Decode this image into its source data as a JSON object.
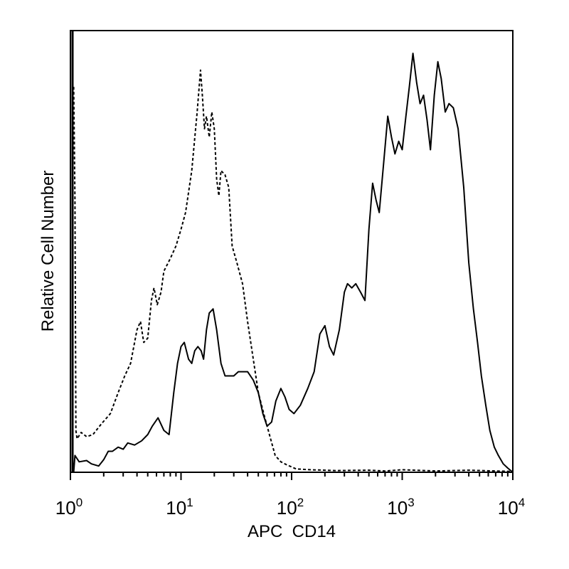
{
  "chart_data": {
    "type": "line",
    "title": "",
    "xlabel": "APC  CD14",
    "ylabel": "Relative Cell Number",
    "x_scale": "log",
    "xlim": [
      1,
      10000
    ],
    "ylim": [
      0,
      100
    ],
    "x_ticks": [
      {
        "value": 1,
        "base": "10",
        "exp": "0"
      },
      {
        "value": 10,
        "base": "10",
        "exp": "1"
      },
      {
        "value": 100,
        "base": "10",
        "exp": "2"
      },
      {
        "value": 1000,
        "base": "10",
        "exp": "3"
      },
      {
        "value": 10000,
        "base": "10",
        "exp": "4"
      }
    ],
    "grid": false,
    "legend": "none",
    "series": [
      {
        "style": "dashed",
        "color": "#000000",
        "points": [
          [
            1.07,
            92
          ],
          [
            1.1,
            65
          ],
          [
            1.12,
            10
          ],
          [
            1.15,
            8
          ],
          [
            1.25,
            9.5
          ],
          [
            1.4,
            8.5
          ],
          [
            1.6,
            9
          ],
          [
            1.9,
            11.5
          ],
          [
            2.3,
            14
          ],
          [
            2.7,
            19
          ],
          [
            3.1,
            23
          ],
          [
            3.5,
            26
          ],
          [
            4.0,
            34
          ],
          [
            4.3,
            36
          ],
          [
            4.6,
            31
          ],
          [
            5.0,
            32
          ],
          [
            5.4,
            41
          ],
          [
            5.7,
            44
          ],
          [
            6.1,
            40
          ],
          [
            6.6,
            43
          ],
          [
            7.0,
            48
          ],
          [
            8.0,
            51
          ],
          [
            9.0,
            54
          ],
          [
            10.0,
            58
          ],
          [
            11.0,
            62
          ],
          [
            12.5,
            72
          ],
          [
            14.0,
            86
          ],
          [
            15.0,
            96
          ],
          [
            15.6,
            90
          ],
          [
            16.3,
            82
          ],
          [
            17.0,
            85
          ],
          [
            18.0,
            80
          ],
          [
            19.0,
            86
          ],
          [
            20.0,
            82
          ],
          [
            21.0,
            70
          ],
          [
            22.0,
            66
          ],
          [
            23.0,
            72
          ],
          [
            25.0,
            71
          ],
          [
            27.0,
            68
          ],
          [
            29.0,
            54
          ],
          [
            32.0,
            50
          ],
          [
            36.0,
            45
          ],
          [
            40.0,
            36
          ],
          [
            45.0,
            27
          ],
          [
            50.0,
            19
          ],
          [
            56.0,
            14
          ],
          [
            63.0,
            9
          ],
          [
            71.0,
            4
          ],
          [
            80.0,
            2.5
          ],
          [
            90.0,
            1.8
          ],
          [
            110.0,
            0.8
          ],
          [
            150.0,
            0.6
          ],
          [
            250.0,
            0.4
          ],
          [
            500.0,
            0.5
          ],
          [
            700.0,
            0.3
          ],
          [
            1000.0,
            0.6
          ],
          [
            2000.0,
            0.3
          ],
          [
            4000.0,
            0.5
          ],
          [
            7000.0,
            0.3
          ],
          [
            10000.0,
            0.2
          ]
        ]
      },
      {
        "style": "solid",
        "color": "#000000",
        "points": [
          [
            1.07,
            0
          ],
          [
            1.1,
            4
          ],
          [
            1.2,
            2.5
          ],
          [
            1.4,
            2.8
          ],
          [
            1.55,
            2
          ],
          [
            1.8,
            1.5
          ],
          [
            2.0,
            3
          ],
          [
            2.2,
            5
          ],
          [
            2.4,
            5
          ],
          [
            2.7,
            6
          ],
          [
            3.0,
            5.5
          ],
          [
            3.3,
            7
          ],
          [
            3.8,
            6.5
          ],
          [
            4.4,
            7.5
          ],
          [
            5.0,
            9
          ],
          [
            5.5,
            11
          ],
          [
            6.2,
            13
          ],
          [
            7.0,
            10
          ],
          [
            7.8,
            9
          ],
          [
            8.6,
            19
          ],
          [
            9.3,
            26
          ],
          [
            10.0,
            30
          ],
          [
            10.7,
            31
          ],
          [
            11.7,
            27
          ],
          [
            12.5,
            26
          ],
          [
            13.3,
            29
          ],
          [
            14.2,
            30
          ],
          [
            15.2,
            29
          ],
          [
            16.0,
            27
          ],
          [
            17.0,
            34
          ],
          [
            18.0,
            38
          ],
          [
            19.5,
            39
          ],
          [
            21.0,
            34
          ],
          [
            23.0,
            26
          ],
          [
            25.0,
            23
          ],
          [
            27.0,
            23
          ],
          [
            30.0,
            23
          ],
          [
            33.0,
            24
          ],
          [
            36.0,
            24
          ],
          [
            40.0,
            24
          ],
          [
            45.0,
            22
          ],
          [
            50.0,
            19
          ],
          [
            55.0,
            14
          ],
          [
            60.0,
            11
          ],
          [
            66.0,
            12
          ],
          [
            72.0,
            17
          ],
          [
            80.0,
            20
          ],
          [
            87.0,
            18
          ],
          [
            95.0,
            15
          ],
          [
            105.0,
            14
          ],
          [
            120.0,
            16
          ],
          [
            140.0,
            20
          ],
          [
            160.0,
            24
          ],
          [
            180.0,
            33
          ],
          [
            200.0,
            35
          ],
          [
            220.0,
            30
          ],
          [
            240.0,
            28
          ],
          [
            270.0,
            34
          ],
          [
            300.0,
            43
          ],
          [
            320.0,
            45
          ],
          [
            350.0,
            44
          ],
          [
            380.0,
            45
          ],
          [
            420.0,
            43
          ],
          [
            460.0,
            41
          ],
          [
            500.0,
            58
          ],
          [
            540.0,
            69
          ],
          [
            580.0,
            65
          ],
          [
            620.0,
            62
          ],
          [
            680.0,
            74
          ],
          [
            740.0,
            85
          ],
          [
            800.0,
            80
          ],
          [
            860.0,
            76
          ],
          [
            930.0,
            79
          ],
          [
            1000.0,
            77
          ],
          [
            1080.0,
            85
          ],
          [
            1160.0,
            92
          ],
          [
            1250.0,
            100
          ],
          [
            1350.0,
            93
          ],
          [
            1450.0,
            88
          ],
          [
            1560.0,
            90
          ],
          [
            1680.0,
            84
          ],
          [
            1800.0,
            77
          ],
          [
            1950.0,
            90
          ],
          [
            2100.0,
            98
          ],
          [
            2250.0,
            94
          ],
          [
            2450.0,
            86
          ],
          [
            2650.0,
            88
          ],
          [
            2900.0,
            87
          ],
          [
            3200.0,
            82
          ],
          [
            3600.0,
            68
          ],
          [
            4000.0,
            50
          ],
          [
            4400.0,
            39
          ],
          [
            4800.0,
            31
          ],
          [
            5200.0,
            23
          ],
          [
            5700.0,
            16
          ],
          [
            6200.0,
            10
          ],
          [
            6800.0,
            6
          ],
          [
            7400.0,
            4
          ],
          [
            8200.0,
            2
          ],
          [
            9000.0,
            1
          ],
          [
            10000.0,
            0
          ]
        ]
      }
    ]
  }
}
